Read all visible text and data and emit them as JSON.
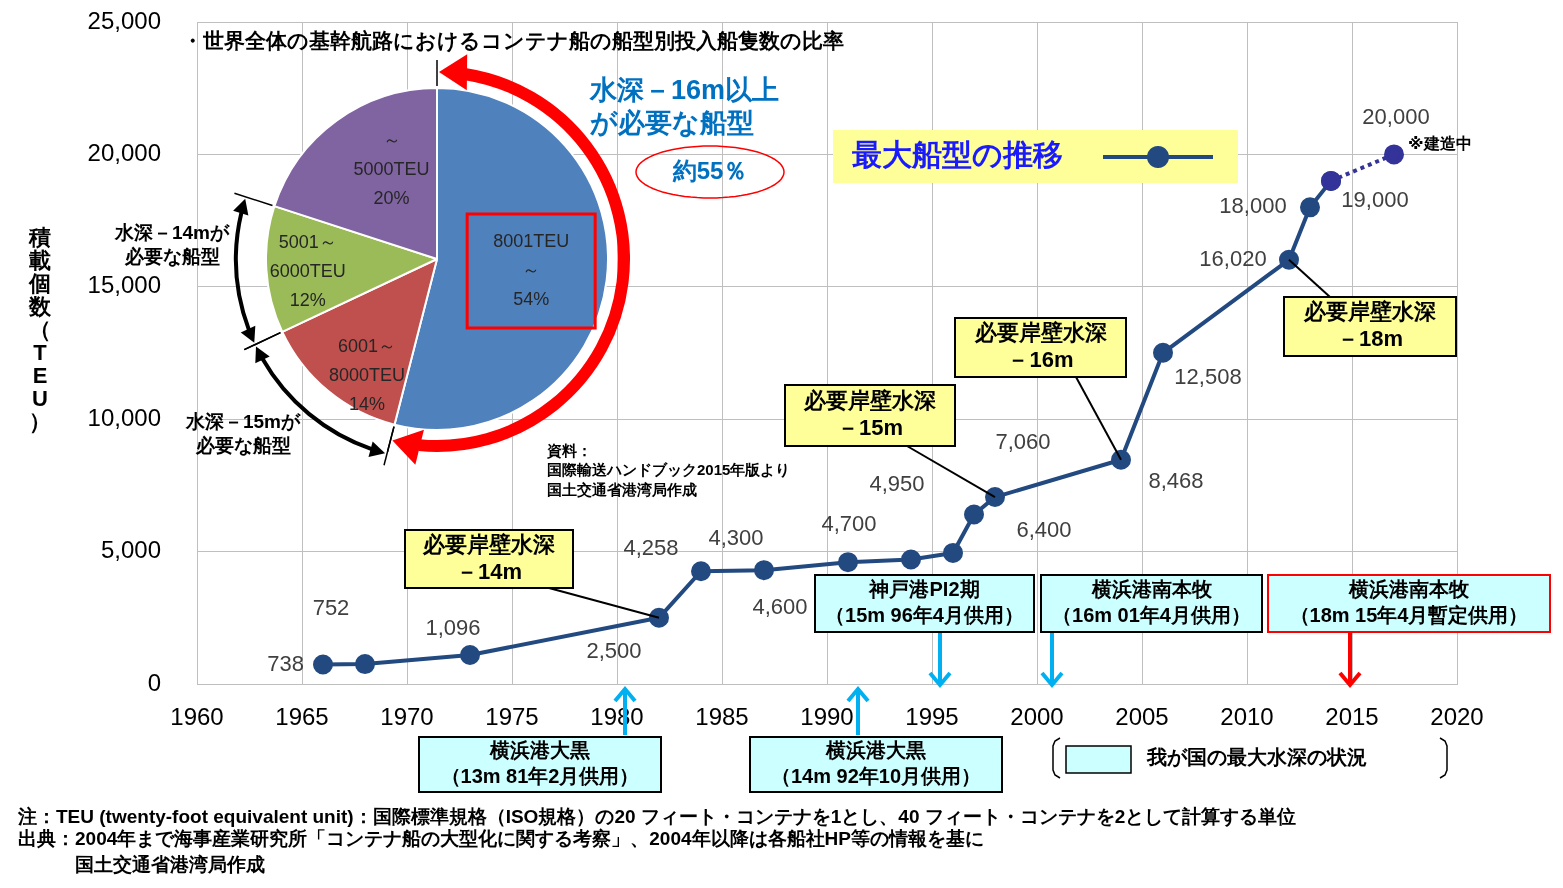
{
  "chart_data": [
    {
      "type": "line",
      "ylabel": "積載個数（TEU）",
      "xlim": [
        1960,
        2020
      ],
      "xticks": [
        1960,
        1965,
        1970,
        1975,
        1980,
        1985,
        1990,
        1995,
        2000,
        2005,
        2010,
        2015,
        2020
      ],
      "ylim": [
        0,
        25000
      ],
      "yticks": [
        0,
        {
          "value": 5000,
          "label": "5,000"
        },
        {
          "value": 10000,
          "label": "10,000"
        },
        {
          "value": 15000,
          "label": "15,000"
        },
        {
          "value": 20000,
          "label": "20,000"
        },
        {
          "value": 25000,
          "label": "25,000"
        }
      ],
      "grid": true,
      "legend": "top right",
      "marker": "circle",
      "series": [
        {
          "name": "最大船型の推移",
          "color": "#234a80",
          "x": [
            1966,
            1968,
            1973,
            1982,
            1984,
            1987,
            1991,
            1994,
            1996,
            1997,
            1998,
            2004,
            2006,
            2012,
            2013,
            2014
          ],
          "values": [
            738,
            752,
            1096,
            2500,
            4258,
            4300,
            4600,
            4700,
            4950,
            6400,
            7060,
            8468,
            12508,
            16020,
            18000,
            19000
          ],
          "value_labels": [
            "738",
            "752",
            "1,096",
            "2,500",
            "4,258",
            "4,300",
            "4,600",
            "4,700",
            "4,950",
            "6,400",
            "7,060",
            "8,468",
            "12,508",
            "16,020",
            "18,000",
            "19,000"
          ]
        },
        {
          "color": "#333399",
          "line_style": "dotted",
          "x": [
            2014,
            2017
          ],
          "values": [
            19000,
            20000
          ],
          "value_labels": [
            null,
            "20,000"
          ]
        }
      ],
      "annotations": [
        {
          "text": "必要岸壁水深－14m",
          "x": 1982,
          "y": 2500
        },
        {
          "text": "必要岸壁水深－15m",
          "x": 1998,
          "y": 7060
        },
        {
          "text": "必要岸壁水深－16m",
          "x": 2004,
          "y": 8468
        },
        {
          "text": "必要岸壁水深－18m",
          "x": 2012,
          "y": 16020
        },
        {
          "text": "※建造中",
          "x": 2017,
          "y": 20000
        },
        "横浜港大黒（13m 81年2月供用）",
        "横浜港大黒（14m 92年10月供用）",
        "神戸港PI2期（15m 96年4月供用）",
        "横浜港南本牧（16m 01年4月供用）",
        "横浜港南本牧（18m 15年4月暫定供用）",
        "我が国の最大水深の状況",
        "注：TEU (twenty-foot equivalent unit)：国際標準規格（ISO規格）の20 フィート・コンテナを1とし、40 フィート・コンテナを2として計算する単位",
        "出典：2004年まで海事産業研究所「コンテナ船の大型化に関する考察」、2004年以降は各船社HP等の情報を基に国土交通省港湾局作成"
      ]
    },
    {
      "type": "pie",
      "title": "・世界全体の基幹航路におけるコンテナ船の船型別投入船隻数の比率",
      "categories": [
        "8001TEU\n～",
        "6001～\n8000TEU",
        "5001～\n6000TEU",
        "～\n5000TEU"
      ],
      "values": [
        54,
        14,
        12,
        20
      ],
      "colors": [
        "#4f81bd",
        "#c0504d",
        "#9bbb59",
        "#8064a2"
      ],
      "value_labels": [
        "54%",
        "14%",
        "12%",
        "20%"
      ],
      "annotations": [
        "水深－16m以上が必要な船型",
        "約55％",
        "水深－14mが必要な船型",
        "水深－15mが必要な船型",
        "資料：国際輸送ハンドブック2015年版より国土交通省港湾局作成"
      ]
    }
  ]
}
